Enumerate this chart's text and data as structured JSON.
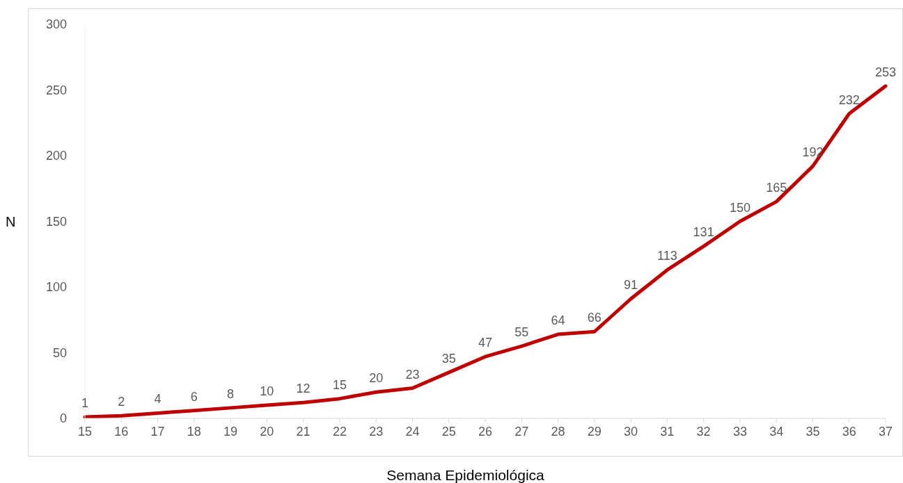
{
  "chart_data": {
    "type": "line",
    "xlabel": "Semana Epidemiológica",
    "ylabel": "N",
    "categories": [
      "15",
      "16",
      "17",
      "18",
      "19",
      "20",
      "21",
      "22",
      "23",
      "24",
      "25",
      "26",
      "27",
      "28",
      "29",
      "30",
      "31",
      "32",
      "33",
      "34",
      "35",
      "36",
      "37"
    ],
    "values": [
      1,
      2,
      4,
      6,
      8,
      10,
      12,
      15,
      20,
      23,
      35,
      47,
      55,
      64,
      66,
      91,
      113,
      131,
      150,
      165,
      192,
      232,
      253
    ],
    "color": "#c00000",
    "ylim": [
      0,
      300
    ],
    "yticks": [
      0,
      50,
      100,
      150,
      200,
      250,
      300
    ],
    "grid": false,
    "data_labels": true,
    "marker": "none",
    "line_style": "solid",
    "legend": false
  }
}
